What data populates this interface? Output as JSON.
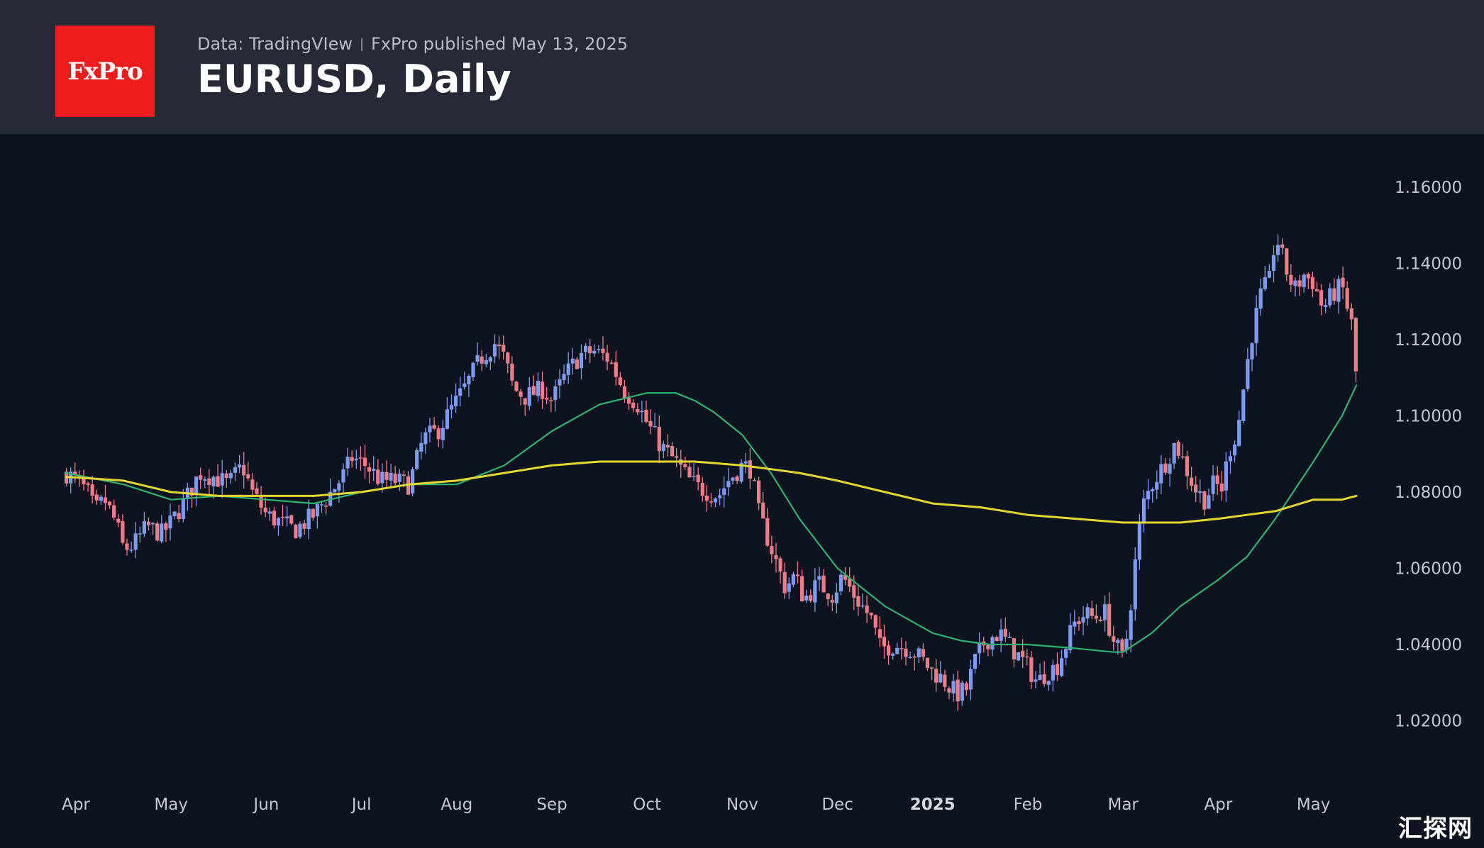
{
  "header": {
    "logo_text": "FxPro",
    "source": "Data: TradingVIew",
    "published": "FxPro published May 13, 2025",
    "title": "EURUSD, Daily"
  },
  "watermark": "汇探网",
  "colors": {
    "background": "#0e1320",
    "header_background": "#262a36",
    "up_candle": "#7b9cf0",
    "down_candle": "#f17b86",
    "ma_fast": "#2db46e",
    "ma_slow": "#e3d732",
    "logo_red": "#ee1c1c"
  },
  "chart_data": {
    "type": "candlestick",
    "title": "EURUSD, Daily",
    "y_ticks": [
      "1.16000",
      "1.14000",
      "1.12000",
      "1.10000",
      "1.08000",
      "1.06000",
      "1.04000",
      "1.02000"
    ],
    "y_tick_values": [
      1.16,
      1.14,
      1.12,
      1.1,
      1.08,
      1.06,
      1.04,
      1.02
    ],
    "x_ticks": [
      {
        "label": "Apr",
        "month_index": 0,
        "bold": false
      },
      {
        "label": "May",
        "month_index": 1,
        "bold": false
      },
      {
        "label": "Jun",
        "month_index": 2,
        "bold": false
      },
      {
        "label": "Jul",
        "month_index": 3,
        "bold": false
      },
      {
        "label": "Aug",
        "month_index": 4,
        "bold": false
      },
      {
        "label": "Sep",
        "month_index": 5,
        "bold": false
      },
      {
        "label": "Oct",
        "month_index": 6,
        "bold": false
      },
      {
        "label": "Nov",
        "month_index": 7,
        "bold": false
      },
      {
        "label": "Dec",
        "month_index": 8,
        "bold": false
      },
      {
        "label": "2025",
        "month_index": 9,
        "bold": true
      },
      {
        "label": "Feb",
        "month_index": 10,
        "bold": false
      },
      {
        "label": "Mar",
        "month_index": 11,
        "bold": false
      },
      {
        "label": "Apr",
        "month_index": 12,
        "bold": false
      },
      {
        "label": "May",
        "month_index": 13,
        "bold": false
      }
    ],
    "ylim": [
      1.0095,
      1.1615
    ],
    "close_path": [
      [
        -0.1,
        1.085
      ],
      [
        0.0,
        1.083
      ],
      [
        0.12,
        1.08
      ],
      [
        0.2,
        1.075
      ],
      [
        0.3,
        1.078
      ],
      [
        0.42,
        1.072
      ],
      [
        0.5,
        1.065
      ],
      [
        0.6,
        1.066
      ],
      [
        0.75,
        1.071
      ],
      [
        0.9,
        1.069
      ],
      [
        1.0,
        1.072
      ],
      [
        1.15,
        1.078
      ],
      [
        1.3,
        1.085
      ],
      [
        1.45,
        1.084
      ],
      [
        1.6,
        1.082
      ],
      [
        1.75,
        1.087
      ],
      [
        1.85,
        1.08
      ],
      [
        2.0,
        1.074
      ],
      [
        2.15,
        1.072
      ],
      [
        2.3,
        1.07
      ],
      [
        2.5,
        1.074
      ],
      [
        2.65,
        1.079
      ],
      [
        2.8,
        1.084
      ],
      [
        2.9,
        1.089
      ],
      [
        3.05,
        1.087
      ],
      [
        3.2,
        1.083
      ],
      [
        3.35,
        1.083
      ],
      [
        3.5,
        1.082
      ],
      [
        3.65,
        1.094
      ],
      [
        3.8,
        1.096
      ],
      [
        3.95,
        1.102
      ],
      [
        4.1,
        1.108
      ],
      [
        4.25,
        1.115
      ],
      [
        4.4,
        1.119
      ],
      [
        4.5,
        1.115
      ],
      [
        4.6,
        1.107
      ],
      [
        4.72,
        1.105
      ],
      [
        4.9,
        1.107
      ],
      [
        5.0,
        1.104
      ],
      [
        5.15,
        1.111
      ],
      [
        5.3,
        1.116
      ],
      [
        5.45,
        1.117
      ],
      [
        5.6,
        1.115
      ],
      [
        5.75,
        1.107
      ],
      [
        5.9,
        1.103
      ],
      [
        6.0,
        1.098
      ],
      [
        6.15,
        1.092
      ],
      [
        6.3,
        1.088
      ],
      [
        6.45,
        1.083
      ],
      [
        6.55,
        1.081
      ],
      [
        6.75,
        1.079
      ],
      [
        6.85,
        1.083
      ],
      [
        7.0,
        1.087
      ],
      [
        7.1,
        1.086
      ],
      [
        7.15,
        1.076
      ],
      [
        7.25,
        1.069
      ],
      [
        7.35,
        1.062
      ],
      [
        7.45,
        1.055
      ],
      [
        7.55,
        1.058
      ],
      [
        7.65,
        1.052
      ],
      [
        7.8,
        1.056
      ],
      [
        7.95,
        1.053
      ],
      [
        8.05,
        1.058
      ],
      [
        8.2,
        1.052
      ],
      [
        8.35,
        1.047
      ],
      [
        8.45,
        1.039
      ],
      [
        8.6,
        1.04
      ],
      [
        8.75,
        1.039
      ],
      [
        8.85,
        1.037
      ],
      [
        9.0,
        1.033
      ],
      [
        9.1,
        1.031
      ],
      [
        9.25,
        1.027
      ],
      [
        9.35,
        1.028
      ],
      [
        9.45,
        1.036
      ],
      [
        9.55,
        1.041
      ],
      [
        9.7,
        1.043
      ],
      [
        9.8,
        1.04
      ],
      [
        9.9,
        1.037
      ],
      [
        10.0,
        1.034
      ],
      [
        10.1,
        1.03
      ],
      [
        10.2,
        1.033
      ],
      [
        10.3,
        1.034
      ],
      [
        10.4,
        1.04
      ],
      [
        10.5,
        1.046
      ],
      [
        10.6,
        1.048
      ],
      [
        10.7,
        1.047
      ],
      [
        10.8,
        1.049
      ],
      [
        10.9,
        1.041
      ],
      [
        11.0,
        1.036
      ],
      [
        11.05,
        1.044
      ],
      [
        11.12,
        1.06
      ],
      [
        11.2,
        1.076
      ],
      [
        11.3,
        1.082
      ],
      [
        11.45,
        1.088
      ],
      [
        11.55,
        1.093
      ],
      [
        11.65,
        1.087
      ],
      [
        11.75,
        1.081
      ],
      [
        11.85,
        1.078
      ],
      [
        11.95,
        1.082
      ],
      [
        12.05,
        1.081
      ],
      [
        12.1,
        1.09
      ],
      [
        12.2,
        1.096
      ],
      [
        12.28,
        1.11
      ],
      [
        12.35,
        1.121
      ],
      [
        12.45,
        1.132
      ],
      [
        12.55,
        1.136
      ],
      [
        12.6,
        1.148
      ],
      [
        12.7,
        1.139
      ],
      [
        12.8,
        1.133
      ],
      [
        12.9,
        1.137
      ],
      [
        13.0,
        1.135
      ],
      [
        13.1,
        1.128
      ],
      [
        13.2,
        1.132
      ],
      [
        13.3,
        1.134
      ],
      [
        13.4,
        1.124
      ],
      [
        13.45,
        1.11
      ]
    ],
    "series": [
      {
        "name": "",
        "kind": "ma_fast",
        "x": [
          -0.1,
          0.5,
          1.0,
          1.5,
          2.0,
          2.5,
          3.0,
          3.5,
          4.0,
          4.5,
          5.0,
          5.5,
          6.0,
          6.3,
          6.5,
          6.7,
          7.0,
          7.3,
          7.6,
          8.0,
          8.5,
          9.0,
          9.3,
          9.6,
          10.0,
          10.5,
          10.9,
          11.0,
          11.3,
          11.6,
          12.0,
          12.3,
          12.6,
          13.0,
          13.3,
          13.45
        ],
        "values": [
          1.085,
          1.082,
          1.078,
          1.079,
          1.078,
          1.077,
          1.08,
          1.082,
          1.082,
          1.087,
          1.096,
          1.103,
          1.106,
          1.106,
          1.104,
          1.101,
          1.095,
          1.085,
          1.073,
          1.06,
          1.05,
          1.043,
          1.041,
          1.04,
          1.04,
          1.039,
          1.038,
          1.038,
          1.043,
          1.05,
          1.057,
          1.063,
          1.073,
          1.088,
          1.1,
          1.108
        ]
      },
      {
        "name": "",
        "kind": "ma_slow",
        "x": [
          -0.1,
          0.5,
          1.0,
          1.5,
          2.0,
          2.5,
          3.0,
          3.5,
          4.0,
          4.5,
          5.0,
          5.5,
          6.0,
          6.5,
          7.0,
          7.3,
          7.6,
          8.0,
          8.5,
          9.0,
          9.5,
          10.0,
          10.5,
          11.0,
          11.3,
          11.6,
          12.0,
          12.3,
          12.6,
          13.0,
          13.3,
          13.45
        ],
        "values": [
          1.084,
          1.083,
          1.08,
          1.079,
          1.079,
          1.079,
          1.08,
          1.082,
          1.083,
          1.085,
          1.087,
          1.088,
          1.088,
          1.088,
          1.087,
          1.086,
          1.085,
          1.083,
          1.08,
          1.077,
          1.076,
          1.074,
          1.073,
          1.072,
          1.072,
          1.072,
          1.073,
          1.074,
          1.075,
          1.078,
          1.078,
          1.079
        ]
      }
    ],
    "grid": false,
    "legend": "none"
  }
}
